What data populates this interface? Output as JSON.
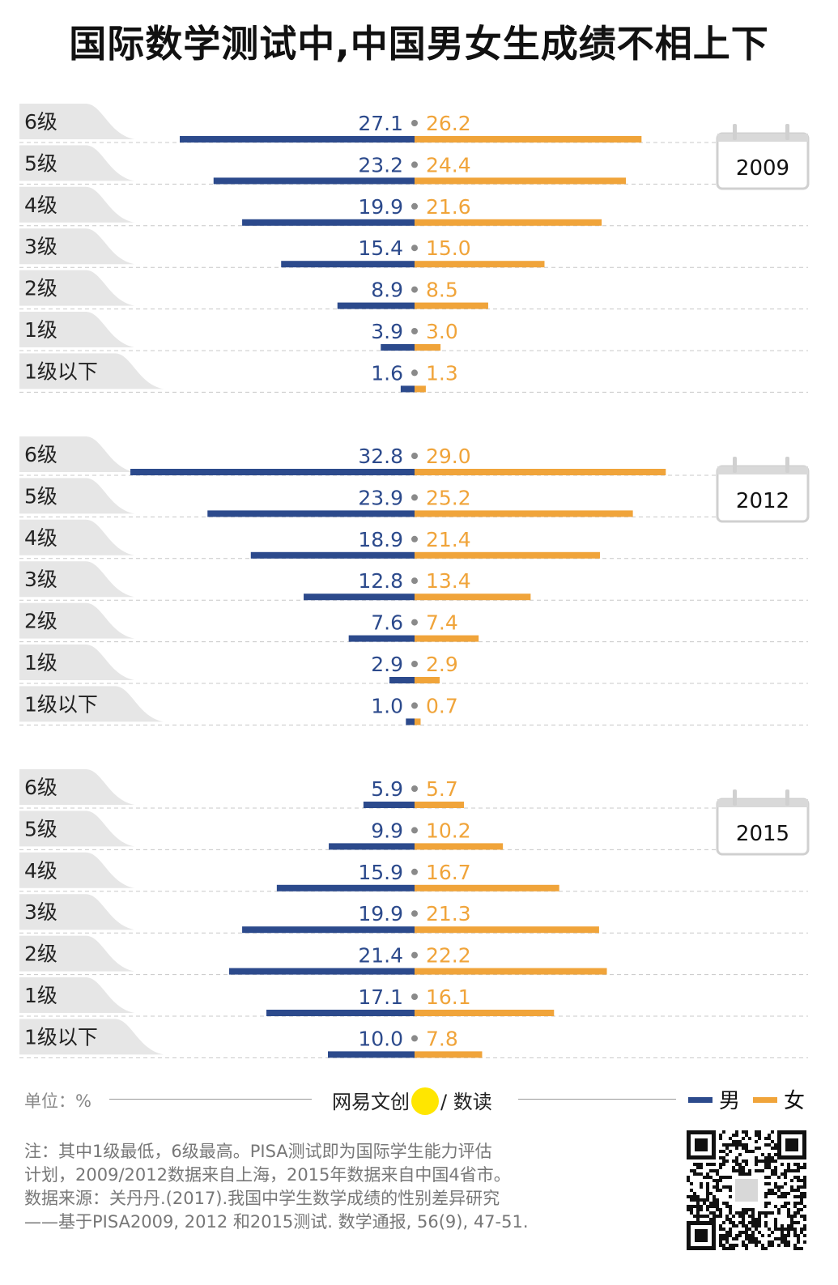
{
  "title": "国际数学测试中,中国男女生成绩不相上下",
  "chart_data": {
    "type": "bar",
    "orientation": "horizontal-diverging",
    "categories": [
      "6级",
      "5级",
      "4级",
      "3级",
      "2级",
      "1级",
      "1级以下"
    ],
    "unit": "%",
    "xlim": [
      0,
      33
    ],
    "panels": [
      {
        "year": "2009",
        "series": [
          {
            "name": "男",
            "values": [
              27.1,
              23.2,
              19.9,
              15.4,
              8.9,
              3.9,
              1.6
            ],
            "labels": [
              "27.1",
              "23.2",
              "19.9",
              "15.4",
              "8.9",
              "3.9",
              "1.6"
            ]
          },
          {
            "name": "女",
            "values": [
              26.2,
              24.4,
              21.6,
              15.0,
              8.5,
              3.0,
              1.3
            ],
            "labels": [
              "26.2",
              "24.4",
              "21.6",
              "15.0",
              "8.5",
              "3.0",
              "1.3"
            ]
          }
        ]
      },
      {
        "year": "2012",
        "series": [
          {
            "name": "男",
            "values": [
              32.8,
              23.9,
              18.9,
              12.8,
              7.6,
              2.9,
              1.0
            ],
            "labels": [
              "32.8",
              "23.9",
              "18.9",
              "12.8",
              "7.6",
              "2.9",
              "1.0"
            ]
          },
          {
            "name": "女",
            "values": [
              29.0,
              25.2,
              21.4,
              13.4,
              7.4,
              2.9,
              0.7
            ],
            "labels": [
              "29.0",
              "25.2",
              "21.4",
              "13.4",
              "7.4",
              "2.9",
              "0.7"
            ]
          }
        ]
      },
      {
        "year": "2015",
        "series": [
          {
            "name": "男",
            "values": [
              5.9,
              9.9,
              15.9,
              19.9,
              21.4,
              17.1,
              10.0
            ],
            "labels": [
              "5.9",
              "9.9",
              "15.9",
              "19.9",
              "21.4",
              "17.1",
              "10.0"
            ]
          },
          {
            "name": "女",
            "values": [
              5.7,
              10.2,
              16.7,
              21.3,
              22.2,
              16.1,
              7.8
            ],
            "labels": [
              "5.7",
              "10.2",
              "16.7",
              "21.3",
              "22.2",
              "16.1",
              "7.8"
            ]
          }
        ]
      }
    ],
    "colors": {
      "男": "#2c4a8c",
      "女": "#f0a43a"
    },
    "legend_placement": "bottom-right"
  },
  "footer": {
    "unit_label": "单位：%",
    "brand_left": "网易文创",
    "brand_right": "/ 数读",
    "legend_male": "男",
    "legend_female": "女",
    "notes": [
      "注：其中1级最低，6级最高。PISA测试即为国际学生能力评估",
      "计划，2009/2012数据来自上海，2015年数据来自中国4省市。",
      "数据来源：关丹丹.(2017).我国中学生数学成绩的性别差异研究",
      "——基于PISA2009, 2012 和2015测试. 数学通报, 56(9), 47-51."
    ],
    "qr_icon": "qr-code-icon"
  }
}
